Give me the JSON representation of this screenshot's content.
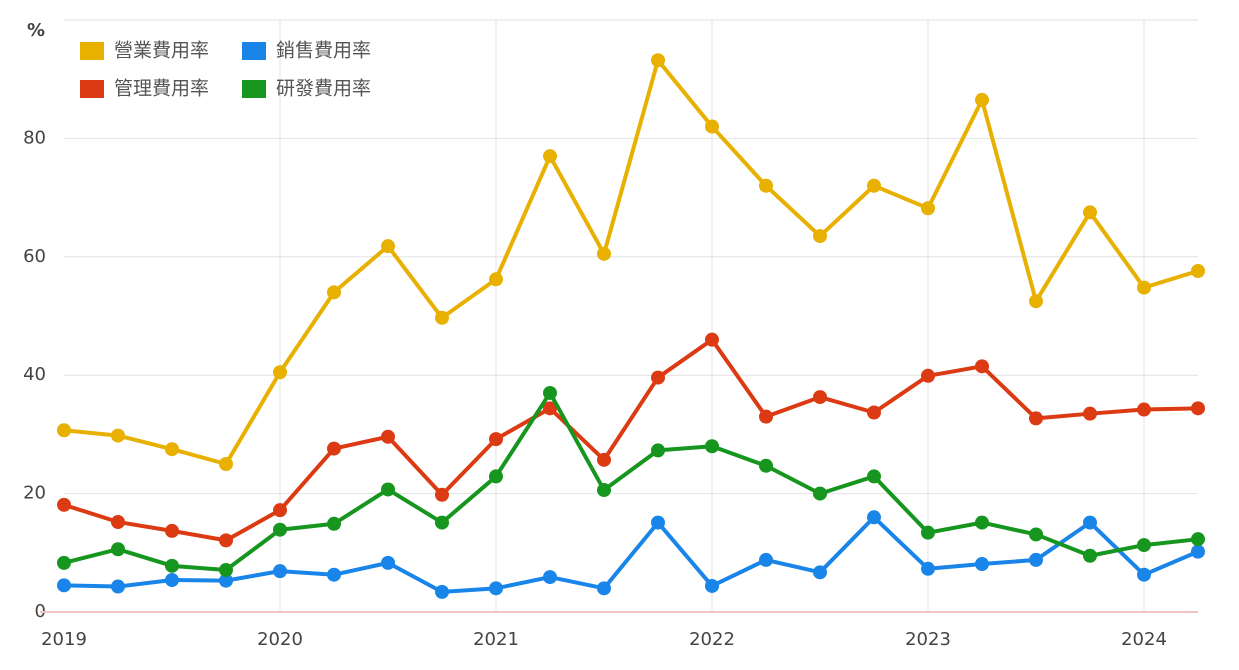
{
  "chart_data": {
    "type": "line",
    "y_label": "%",
    "categories": [
      "2019",
      null,
      null,
      null,
      "2020",
      null,
      null,
      null,
      "2021",
      null,
      null,
      null,
      "2022",
      null,
      null,
      null,
      "2023",
      null,
      null,
      null,
      "2024",
      null
    ],
    "series": [
      {
        "name": "營業費用率",
        "color": "#e8b000",
        "values": [
          30.7,
          29.8,
          27.5,
          25,
          40.5,
          54,
          61.8,
          49.7,
          56.2,
          77,
          60.5,
          93.2,
          82,
          72,
          63.5,
          72,
          68.2,
          86.5,
          52.5,
          67.5,
          54.8,
          57.6
        ]
      },
      {
        "name": "銷售費用率",
        "color": "#1a85e8",
        "values": [
          4.5,
          4.3,
          5.4,
          5.3,
          6.9,
          6.3,
          8.3,
          3.4,
          4,
          5.9,
          4,
          15.1,
          4.4,
          8.8,
          6.7,
          16,
          7.3,
          8.1,
          8.8,
          15.1,
          6.3,
          10.2
        ]
      },
      {
        "name": "管理費用率",
        "color": "#dc3a12",
        "values": [
          18.1,
          15.2,
          13.7,
          12.1,
          17.2,
          27.6,
          29.6,
          19.8,
          29.2,
          34.4,
          25.7,
          39.6,
          46,
          33,
          36.3,
          33.7,
          39.9,
          41.5,
          32.7,
          33.5,
          34.2,
          34.4
        ]
      },
      {
        "name": "研發費用率",
        "color": "#16961e",
        "values": [
          8.3,
          10.6,
          7.8,
          7.1,
          13.9,
          14.9,
          20.7,
          15.1,
          22.9,
          37,
          20.6,
          27.3,
          28,
          24.7,
          20,
          22.9,
          13.4,
          15.1,
          13.1,
          9.5,
          11.3,
          12.3
        ]
      }
    ],
    "ylim": [
      0,
      100
    ],
    "yticks": [
      0,
      20,
      40,
      60,
      80
    ],
    "grid": true,
    "legend": "upper-left"
  }
}
